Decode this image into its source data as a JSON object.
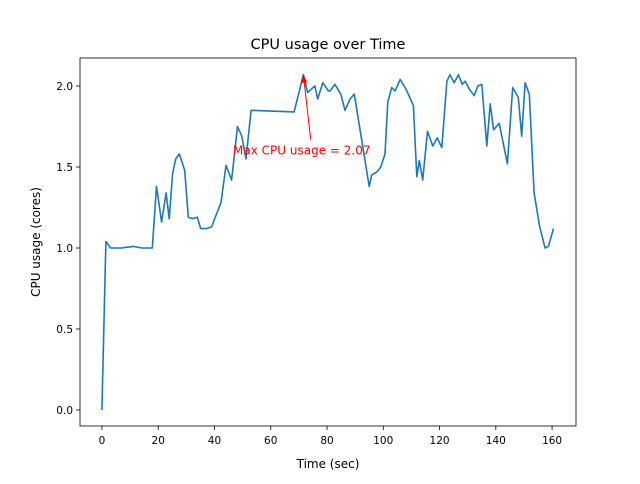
{
  "chart_data": {
    "type": "line",
    "title": "CPU usage over Time",
    "xlabel": "Time (sec)",
    "ylabel": "CPU usage (cores)",
    "xlim": [
      -7.8,
      168.5
    ],
    "ylim": [
      -0.099,
      2.173
    ],
    "xticks": [
      0,
      20,
      40,
      60,
      80,
      100,
      120,
      140,
      160
    ],
    "xtick_labels": [
      "0",
      "20",
      "40",
      "60",
      "80",
      "100",
      "120",
      "140",
      "160"
    ],
    "yticks": [
      0.0,
      0.5,
      1.0,
      1.5,
      2.0
    ],
    "ytick_labels": [
      "0.0",
      "0.5",
      "1.0",
      "1.5",
      "2.0"
    ],
    "grid": false,
    "series": [
      {
        "name": "CPU usage",
        "color": "#1f77b4",
        "x": [
          0,
          1.4,
          3.1,
          5.8,
          7,
          11.1,
          14.1,
          17.9,
          19.4,
          21.2,
          22.8,
          23.9,
          25.1,
          26.2,
          27.5,
          29.4,
          30.7,
          32.2,
          33.9,
          35.1,
          37.2,
          39,
          40.5,
          42.3,
          44.1,
          46.1,
          48.2,
          49.7,
          51.2,
          53,
          68.3,
          71.6,
          73.1,
          75.7,
          76.7,
          78.5,
          80.5,
          81.1,
          82.8,
          84.9,
          86.4,
          88.2,
          89.7,
          95,
          95.9,
          97.7,
          99.1,
          100.6,
          101.6,
          103,
          104.2,
          106,
          108.1,
          110.7,
          111.9,
          112.8,
          114,
          115.7,
          117.6,
          119.2,
          120.8,
          122.6,
          123.7,
          125.2,
          126.7,
          128.1,
          129.1,
          130.6,
          132.3,
          133.6,
          135,
          136.8,
          138,
          139.2,
          141.2,
          144.1,
          146,
          148,
          149.2,
          150.4,
          151.9,
          153.6,
          155.5,
          157.5,
          158.7,
          160.5
        ],
        "y": [
          0,
          1.04,
          1.0,
          1.0,
          1.0,
          1.01,
          1.0,
          1.0,
          1.38,
          1.16,
          1.34,
          1.18,
          1.46,
          1.55,
          1.58,
          1.48,
          1.19,
          1.18,
          1.19,
          1.12,
          1.12,
          1.13,
          1.2,
          1.28,
          1.51,
          1.42,
          1.75,
          1.69,
          1.55,
          1.85,
          1.84,
          2.07,
          1.96,
          2.0,
          1.92,
          2.02,
          1.97,
          1.97,
          2.01,
          1.95,
          1.85,
          1.92,
          1.95,
          1.38,
          1.45,
          1.47,
          1.5,
          1.58,
          1.9,
          1.99,
          1.97,
          2.04,
          1.98,
          1.88,
          1.44,
          1.54,
          1.42,
          1.72,
          1.63,
          1.68,
          1.62,
          2.03,
          2.07,
          2.02,
          2.07,
          2.01,
          2.03,
          1.98,
          1.94,
          2.0,
          2.01,
          1.63,
          1.89,
          1.73,
          1.77,
          1.52,
          1.99,
          1.93,
          1.69,
          2.02,
          1.95,
          1.34,
          1.14,
          1.0,
          1.01,
          1.12
        ]
      }
    ],
    "annotations": [
      {
        "text": "Max CPU usage = 2.07",
        "color": "#ff0000",
        "xy": [
          71.6,
          2.07
        ],
        "xytext": [
          46.6,
          1.6
        ],
        "arrow_tail": [
          74.2,
          1.67
        ]
      }
    ]
  }
}
